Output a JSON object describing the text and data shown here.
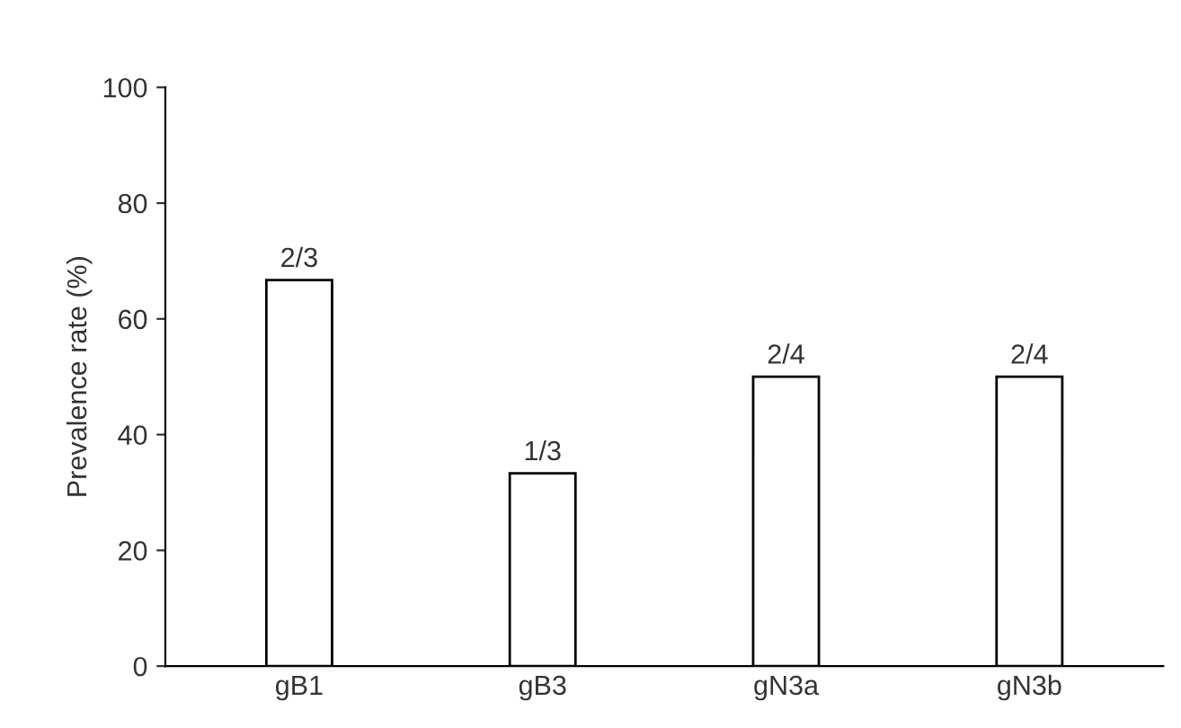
{
  "chart_data": {
    "type": "bar",
    "ylabel": "Prevalence rate (%)",
    "categories": [
      "gB1",
      "gB3",
      "gN3a",
      "gN3b"
    ],
    "values": [
      66.7,
      33.3,
      50,
      50
    ],
    "annotations": [
      {
        "text": "2/3",
        "x": "gB1",
        "y": 66.7
      },
      {
        "text": "1/3",
        "x": "gB3",
        "y": 33.3
      },
      {
        "text": "2/4",
        "x": "gN3a",
        "y": 50
      },
      {
        "text": "2/4",
        "x": "gN3b",
        "y": 50
      }
    ],
    "color": "#ffffff",
    "ylim": [
      0,
      100
    ],
    "yticks": [
      0,
      20,
      40,
      60,
      80,
      100
    ],
    "grid": false,
    "legend": false
  }
}
